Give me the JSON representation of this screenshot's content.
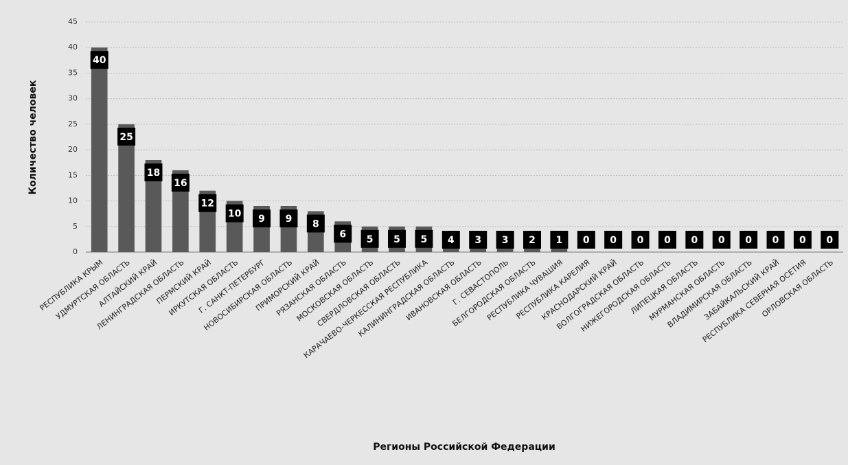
{
  "chart_data": {
    "type": "bar",
    "x_label": "Регионы Российской Федерации",
    "y_label": "Количество человек",
    "categories": [
      "РЕСПУБЛИКА КРЫМ",
      "УДМУРТСКАЯ ОБЛАСТЬ",
      "АЛТАЙСКИЙ КРАЙ",
      "ЛЕНИНГРАДСКАЯ ОБЛАСТЬ",
      "ПЕРМСКИЙ КРАЙ",
      "ИРКУТСКАЯ ОБЛАСТЬ",
      "Г. САНКТ-ПЕТЕРБУРГ",
      "НОВОСИБИРСКАЯ ОБЛАСТЬ",
      "ПРИМОРСКИЙ КРАЙ",
      "РЯЗАНСКАЯ ОБЛАСТЬ",
      "МОСКОВСКАЯ ОБЛАСТЬ",
      "СВЕРДЛОВСКАЯ ОБЛАСТЬ",
      "КАРАЧАЕВО-ЧЕРКЕССКАЯ РЕСПУБЛИКА",
      "КАЛИНИНГРАДСКАЯ ОБЛАСТЬ",
      "ИВАНОВСКАЯ ОБЛАСТЬ",
      "Г. СЕВАСТОПОЛЬ",
      "БЕЛГОРОДСКАЯ ОБЛАСТЬ",
      "РЕСПУБЛИКА ЧУВАШИЯ",
      "РЕСПУБЛИКА КАРЕЛИЯ",
      "КРАСНОДАРСКИЙ КРАЙ",
      "ВОЛГОГРАДСКАЯ ОБЛАСТЬ",
      "НИЖЕГОРОДСКАЯ ОБЛАСТЬ",
      "ЛИПЕЦКАЯ ОБЛАСТЬ",
      "МУРМАНСКАЯ ОБЛАСТЬ",
      "ВЛАДИМИРСКАЯ ОБЛАСТЬ",
      "ЗАБАЙКАЛЬСКИЙ КРАЙ",
      "РЕСПУБЛИКА СЕВЕРНАЯ ОСЕТИЯ",
      "ОРЛОВСКАЯ ОБЛАСТЬ"
    ],
    "values": [
      40,
      25,
      18,
      16,
      12,
      10,
      9,
      9,
      8,
      6,
      5,
      5,
      5,
      4,
      3,
      3,
      2,
      1,
      0,
      0,
      0,
      0,
      0,
      0,
      0,
      0,
      0,
      0
    ],
    "color": "#595959",
    "ylim": [
      0,
      45
    ],
    "yticks": [
      0,
      5,
      10,
      15,
      20,
      25,
      30,
      35,
      40,
      45
    ],
    "grid": true
  }
}
